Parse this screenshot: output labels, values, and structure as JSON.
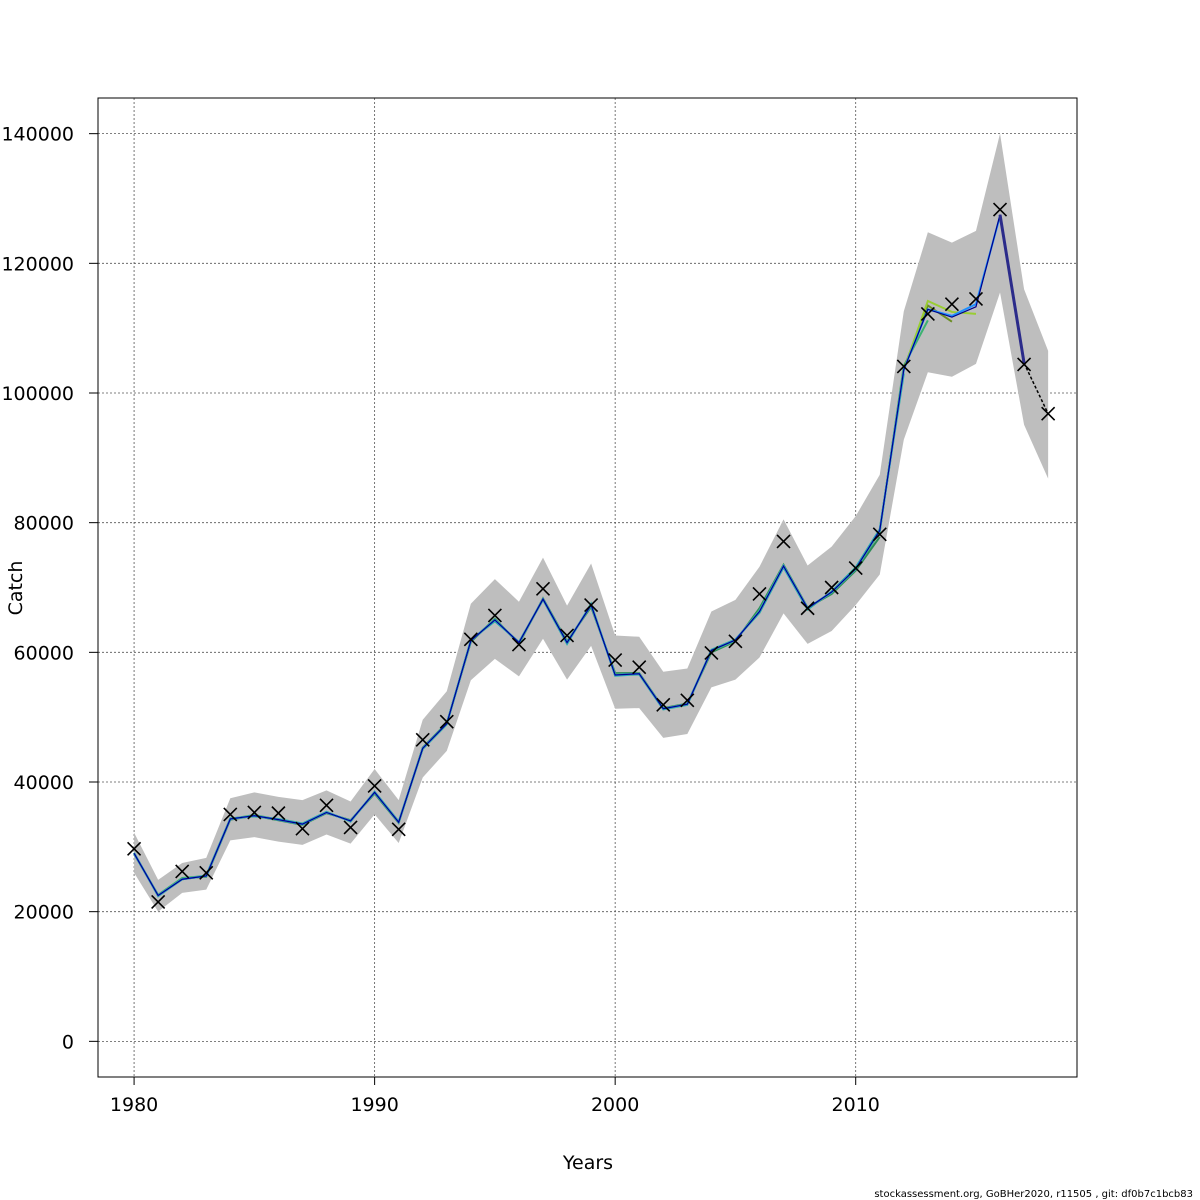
{
  "chart_data": {
    "type": "line",
    "title": "",
    "xlabel": "Years",
    "ylabel": "Catch",
    "xlim": [
      1978.5,
      2019.2
    ],
    "ylim": [
      -5500,
      145500
    ],
    "x_ticks": [
      1980,
      1990,
      2000,
      2010
    ],
    "x_tick_labels": [
      "1980",
      "1990",
      "2000",
      "2010"
    ],
    "y_ticks": [
      0,
      20000,
      40000,
      60000,
      80000,
      100000,
      120000,
      140000
    ],
    "y_tick_labels": [
      "0",
      "20000",
      "40000",
      "60000",
      "80000",
      "100000",
      "120000",
      "140000"
    ],
    "grid": true,
    "colors": {
      "band": "#bebebe",
      "observed": "#000000",
      "main": "#00008b",
      "retro": [
        "#2e8b57",
        "#20b2aa",
        "#3cb371",
        "#6b8e23",
        "#9acd32",
        "#1e90ff"
      ],
      "forecast": "#000000"
    },
    "years": [
      1980,
      1981,
      1982,
      1983,
      1984,
      1985,
      1986,
      1987,
      1988,
      1989,
      1990,
      1991,
      1992,
      1993,
      1994,
      1995,
      1996,
      1997,
      1998,
      1999,
      2000,
      2001,
      2002,
      2003,
      2004,
      2005,
      2006,
      2007,
      2008,
      2009,
      2010,
      2011,
      2012,
      2013,
      2014,
      2015,
      2016,
      2017,
      2018
    ],
    "observed_catch": [
      29700,
      21500,
      26200,
      26000,
      35000,
      35300,
      35200,
      32800,
      36400,
      33000,
      39400,
      32700,
      46500,
      49300,
      62000,
      65700,
      61200,
      69800,
      62600,
      67300,
      58800,
      57700,
      51900,
      52600,
      59900,
      61700,
      69000,
      77100,
      66800,
      70000,
      73000,
      78200,
      104100,
      112200,
      113700,
      114500,
      128300,
      104400,
      96800
    ],
    "estimated_catch": [
      29000,
      22500,
      25000,
      25500,
      34300,
      34800,
      34200,
      33500,
      35300,
      34000,
      38400,
      33800,
      45200,
      49000,
      61800,
      65000,
      61500,
      68200,
      61500,
      67300,
      56500,
      56700,
      51300,
      52000,
      60300,
      61900,
      66300,
      73300,
      66800,
      69300,
      72900,
      78800,
      103600,
      112900,
      111700,
      113300,
      127500,
      104600,
      96800
    ],
    "lower_band": [
      26000,
      20000,
      22900,
      23400,
      31000,
      31500,
      30800,
      30300,
      31900,
      30500,
      35000,
      30600,
      40700,
      44800,
      55700,
      59000,
      56300,
      62100,
      55800,
      61000,
      51300,
      51400,
      46800,
      47400,
      54600,
      55800,
      59200,
      66000,
      61300,
      63300,
      67300,
      72000,
      92800,
      103200,
      102500,
      104500,
      115500,
      95100,
      86800
    ],
    "upper_band": [
      32200,
      24900,
      27500,
      28300,
      37500,
      38400,
      37700,
      37200,
      38700,
      37000,
      42000,
      37200,
      49600,
      54000,
      67500,
      71300,
      67800,
      74600,
      67200,
      73700,
      62600,
      62400,
      57000,
      57500,
      66300,
      68100,
      73200,
      80500,
      73400,
      76300,
      81000,
      87400,
      112600,
      124800,
      123200,
      125000,
      140000,
      116000,
      106500
    ],
    "retro_series": [
      {
        "end": 2011,
        "values": [
          29000,
          22500,
          25100,
          25400,
          34200,
          34800,
          34100,
          33400,
          35200,
          34100,
          38200,
          33700,
          45300,
          49100,
          61600,
          65200,
          61300,
          68300,
          61700,
          67000,
          56800,
          56800,
          51400,
          52100,
          60000,
          61700,
          66800,
          73500,
          66900,
          69000,
          72600,
          77800
        ]
      },
      {
        "end": 2012,
        "values": [
          29100,
          22400,
          25000,
          25600,
          34400,
          34700,
          34300,
          33600,
          35400,
          33900,
          38500,
          33900,
          45100,
          48900,
          61900,
          64800,
          61600,
          68100,
          61300,
          67500,
          56400,
          56600,
          51200,
          51900,
          60400,
          62000,
          66100,
          73100,
          66600,
          69400,
          73100,
          79000,
          103000
        ]
      },
      {
        "end": 2013,
        "values": [
          28900,
          22600,
          25200,
          25500,
          34300,
          34900,
          34200,
          33500,
          35300,
          34000,
          38300,
          33800,
          45200,
          49000,
          61800,
          65100,
          61400,
          68200,
          61600,
          67200,
          56600,
          56700,
          51300,
          52000,
          60200,
          61800,
          66500,
          73400,
          66800,
          69200,
          72800,
          78600,
          104200,
          111200
        ]
      },
      {
        "end": 2014,
        "values": [
          29000,
          22500,
          25000,
          25500,
          34300,
          34800,
          34200,
          33500,
          35300,
          34000,
          38400,
          33800,
          45200,
          49000,
          61800,
          65000,
          61500,
          68200,
          61500,
          67300,
          56500,
          56700,
          51300,
          52000,
          60300,
          61900,
          66300,
          73300,
          66800,
          69300,
          72900,
          78800,
          103800,
          113500,
          111000
        ]
      },
      {
        "end": 2015,
        "values": [
          29000,
          22500,
          25000,
          25500,
          34300,
          34800,
          34200,
          33500,
          35300,
          34000,
          38400,
          33800,
          45200,
          49000,
          61800,
          65000,
          61500,
          68200,
          61500,
          67300,
          56500,
          56700,
          51300,
          52000,
          60300,
          61900,
          66300,
          73300,
          66800,
          69300,
          72900,
          78800,
          103600,
          114200,
          112500,
          112200
        ]
      },
      {
        "end": 2016,
        "values": [
          29000,
          22500,
          25000,
          25500,
          34300,
          34800,
          34200,
          33500,
          35300,
          34000,
          38400,
          33800,
          45200,
          49000,
          61800,
          65000,
          61500,
          68200,
          61500,
          67300,
          56500,
          56700,
          51300,
          52000,
          60300,
          61900,
          66300,
          73300,
          66800,
          69300,
          72900,
          78800,
          103600,
          112900,
          111900,
          113700,
          127300
        ]
      }
    ]
  },
  "footer": "stockassessment.org, GoBHer2020, r11505 , git: df0b7c1bcb83"
}
